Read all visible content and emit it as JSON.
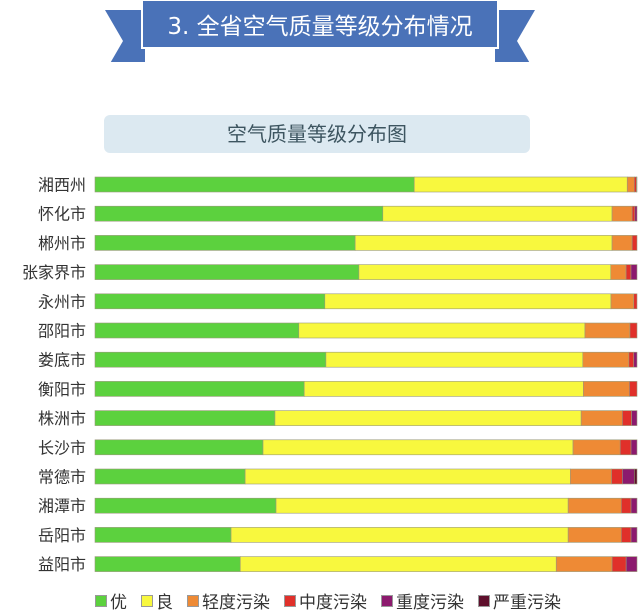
{
  "header": {
    "banner_title": "3. 全省空气质量等级分布情况",
    "banner_color": "#4a72b8"
  },
  "chart_data": {
    "type": "bar",
    "orientation": "horizontal",
    "stacked": "percent",
    "title": "空气质量等级分布图",
    "categories": [
      "湘西州",
      "怀化市",
      "郴州市",
      "张家界市",
      "永州市",
      "邵阳市",
      "娄底市",
      "衡阳市",
      "株洲市",
      "长沙市",
      "常德市",
      "湘潭市",
      "岳阳市",
      "益阳市"
    ],
    "series": [
      {
        "name": "优",
        "color": "#5cd13e",
        "values": [
          58.9,
          53.1,
          48.0,
          48.3,
          42.4,
          37.6,
          42.6,
          38.6,
          33.2,
          31.0,
          27.7,
          33.4,
          25.1,
          26.8
        ]
      },
      {
        "name": "良",
        "color": "#f8f83e",
        "values": [
          39.3,
          42.3,
          47.4,
          46.1,
          52.8,
          52.8,
          47.4,
          51.5,
          56.5,
          57.2,
          60.0,
          53.9,
          62.2,
          58.3
        ]
      },
      {
        "name": "轻度污染",
        "color": "#ee8a35",
        "values": [
          1.3,
          3.7,
          3.7,
          2.8,
          4.2,
          8.3,
          8.5,
          8.5,
          7.6,
          8.7,
          7.6,
          9.8,
          9.8,
          10.3
        ]
      },
      {
        "name": "中度污染",
        "color": "#e0302a",
        "values": [
          0.4,
          0.5,
          0.9,
          0.9,
          0.6,
          1.3,
          0.9,
          1.4,
          1.7,
          2.0,
          2.0,
          1.8,
          1.8,
          2.6
        ]
      },
      {
        "name": "重度污染",
        "color": "#8c1a6e",
        "values": [
          0.1,
          0.4,
          0,
          1.1,
          0,
          0,
          0.6,
          0,
          1.0,
          1.1,
          2.2,
          1.1,
          1.1,
          2.0
        ]
      },
      {
        "name": "严重污染",
        "color": "#5e0f2c",
        "values": [
          0,
          0,
          0,
          0,
          0,
          0,
          0,
          0,
          0,
          0,
          0.5,
          0,
          0,
          0
        ]
      }
    ],
    "xlim": [
      0,
      100
    ],
    "grid": false,
    "legend": "bottom"
  }
}
